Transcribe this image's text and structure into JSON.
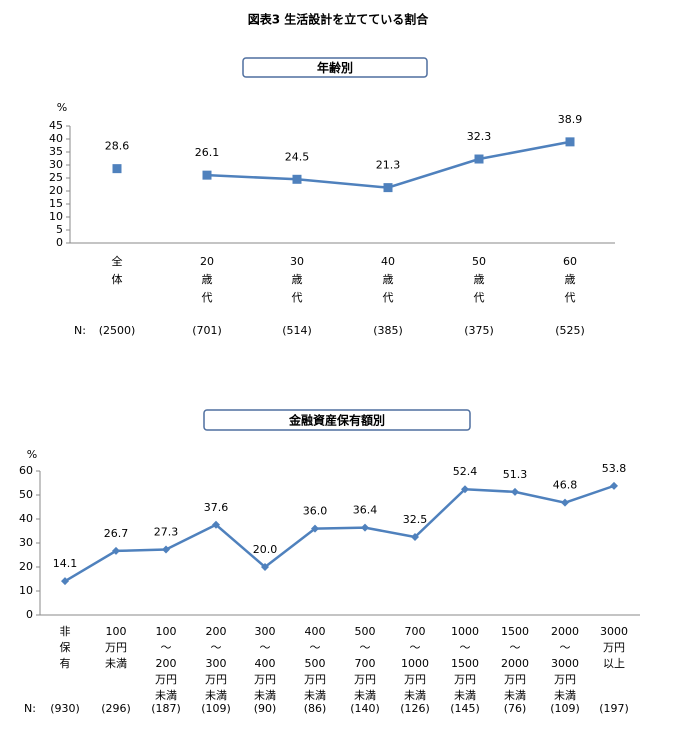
{
  "title": "図表3 生活設計を立てている割合",
  "chart_data": [
    {
      "type": "line",
      "title": "年齢別",
      "y_label": "%",
      "marker": "square",
      "categories": [
        [
          "全",
          "体"
        ],
        [
          "20",
          "歳",
          "代"
        ],
        [
          "30",
          "歳",
          "代"
        ],
        [
          "40",
          "歳",
          "代"
        ],
        [
          "50",
          "歳",
          "代"
        ],
        [
          "60",
          "歳",
          "代"
        ]
      ],
      "series": [
        {
          "color": "#4f81bd",
          "values": [
            28.6,
            null,
            null,
            null,
            null,
            null
          ]
        },
        {
          "color": "#4f81bd",
          "values": [
            null,
            26.1,
            24.5,
            21.3,
            32.3,
            38.9
          ]
        }
      ],
      "ylim": [
        0,
        45
      ],
      "yticks": [
        0,
        5,
        10,
        15,
        20,
        25,
        30,
        35,
        40,
        45
      ],
      "grid": false,
      "n_label": "N:",
      "n_values": [
        "(2500)",
        "(701)",
        "(514)",
        "(385)",
        "(375)",
        "(525)"
      ]
    },
    {
      "type": "line",
      "title": "金融資産保有額別",
      "y_label": "%",
      "marker": "diamond",
      "categories": [
        [
          "非",
          "保",
          "有"
        ],
        [
          "100",
          "万円",
          "未満"
        ],
        [
          "100",
          "～",
          "200",
          "万円",
          "未満"
        ],
        [
          "200",
          "～",
          "300",
          "万円",
          "未満"
        ],
        [
          "300",
          "～",
          "400",
          "万円",
          "未満"
        ],
        [
          "400",
          "～",
          "500",
          "万円",
          "未満"
        ],
        [
          "500",
          "～",
          "700",
          "万円",
          "未満"
        ],
        [
          "700",
          "～",
          "1000",
          "万円",
          "未満"
        ],
        [
          "1000",
          "～",
          "1500",
          "万円",
          "未満"
        ],
        [
          "1500",
          "～",
          "2000",
          "万円",
          "未満"
        ],
        [
          "2000",
          "～",
          "3000",
          "万円",
          "未満"
        ],
        [
          "3000",
          "万円",
          "以上"
        ]
      ],
      "series": [
        {
          "color": "#4f81bd",
          "values": [
            14.1,
            26.7,
            27.3,
            37.6,
            20.0,
            36.0,
            36.4,
            32.5,
            52.4,
            51.3,
            46.8,
            53.8
          ],
          "value_labels": [
            "14.1",
            "26.7",
            "27.3",
            "37.6",
            "20.0",
            "36.0",
            "36.4",
            "32.5",
            "52.4",
            "51.3",
            "46.8",
            "53.8"
          ]
        }
      ],
      "ylim": [
        0,
        60
      ],
      "yticks": [
        0,
        10,
        20,
        30,
        40,
        50,
        60
      ],
      "grid": false,
      "n_label": "N:",
      "n_values": [
        "(930)",
        "(296)",
        "(187)",
        "(109)",
        "(90)",
        "(86)",
        "(140)",
        "(126)",
        "(145)",
        "(76)",
        "(109)",
        "(197)"
      ]
    }
  ]
}
